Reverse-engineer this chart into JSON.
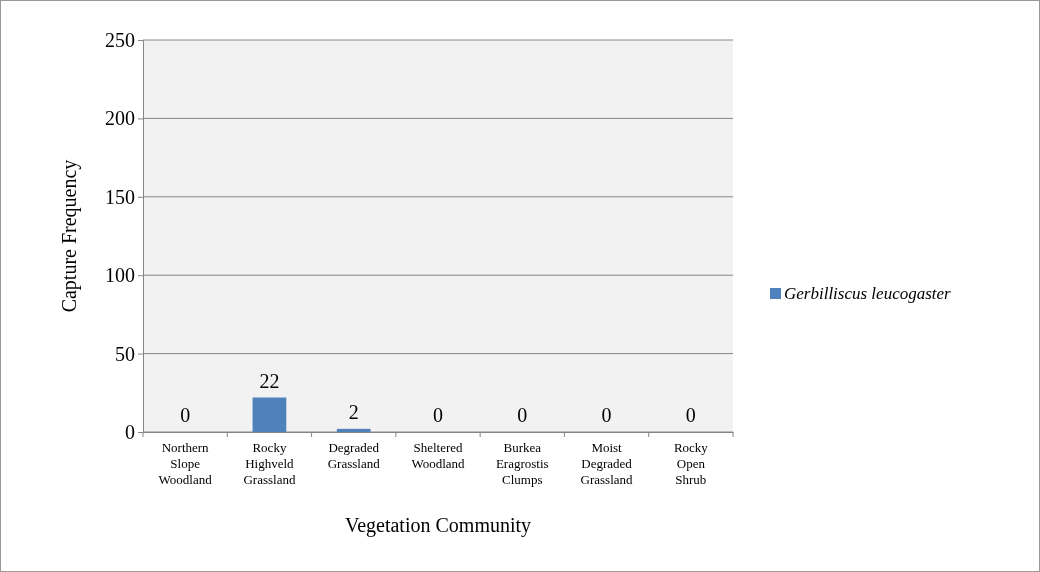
{
  "chart_data": {
    "type": "bar",
    "xlabel": "Vegetation Community",
    "ylabel": "Capture Frequency",
    "categories": [
      "Northern\nSlope\nWoodland",
      "Rocky\nHighveld\nGrassland",
      "Degraded\nGrassland",
      "Sheltered\nWoodland",
      "Burkea\nEragrostis\nClumps",
      "Moist\nDegraded\nGrassland",
      "Rocky\nOpen\nShrub"
    ],
    "series": [
      {
        "name": "Gerbilliscus leucogaster",
        "color": "#4f81bd",
        "values": [
          0,
          22,
          2,
          0,
          0,
          0,
          0
        ]
      }
    ],
    "ylim": [
      0,
      250
    ],
    "yticks": [
      0,
      50,
      100,
      150,
      200,
      250
    ],
    "grid": "y",
    "legend": "right",
    "data_labels": true
  }
}
